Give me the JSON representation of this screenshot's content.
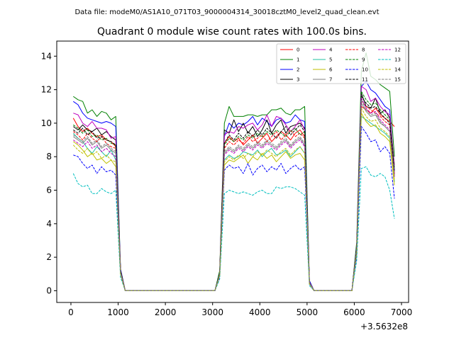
{
  "chart_data": {
    "type": "line",
    "suptitle": "Data file: modeM0/AS1A10_071T03_9000004314_30018cztM0_level2_quad_clean.evt",
    "title": "Quadrant 0 module wise count rates with 100.0s bins.",
    "xlabel": "",
    "ylabel": "",
    "offset_label": "+3.5632e8",
    "xlim": [
      -300,
      7150
    ],
    "ylim": [
      -0.7,
      14.9
    ],
    "xticks": [
      0,
      1000,
      2000,
      3000,
      4000,
      5000,
      6000,
      7000
    ],
    "xtick_labels": [
      "0",
      "1000",
      "2000",
      "3000",
      "4000",
      "5000",
      "6000",
      "7000"
    ],
    "yticks": [
      0,
      2,
      4,
      6,
      8,
      10,
      12,
      14
    ],
    "ytick_labels": [
      "0",
      "2",
      "4",
      "6",
      "8",
      "10",
      "12",
      "14"
    ],
    "legend_position": "top-right",
    "x": [
      50,
      150,
      250,
      350,
      450,
      550,
      650,
      750,
      850,
      950,
      1050,
      1150,
      1250,
      1350,
      1450,
      1550,
      1650,
      1750,
      1850,
      1950,
      2050,
      2150,
      2250,
      2350,
      2450,
      2550,
      2650,
      2750,
      2850,
      2950,
      3050,
      3150,
      3250,
      3350,
      3450,
      3550,
      3650,
      3750,
      3850,
      3950,
      4050,
      4150,
      4250,
      4350,
      4450,
      4550,
      4650,
      4750,
      4850,
      4950,
      5050,
      5150,
      5250,
      5350,
      5450,
      5550,
      5650,
      5750,
      5850,
      5950,
      6050,
      6150,
      6250,
      6350,
      6450,
      6550,
      6650,
      6750,
      6850
    ],
    "series": [
      {
        "name": "0",
        "color": "#ff0000",
        "dash": "solid",
        "values": [
          10.3,
          9.8,
          9.5,
          9.7,
          9.4,
          9.2,
          9.3,
          9.0,
          8.9,
          8.6,
          1.2,
          0,
          0,
          0,
          0,
          0,
          0,
          0,
          0,
          0,
          0,
          0,
          0,
          0,
          0,
          0,
          0,
          0,
          0,
          0,
          0,
          1.0,
          8.8,
          9.2,
          8.9,
          9.1,
          8.7,
          9.0,
          9.3,
          8.8,
          9.1,
          9.4,
          8.9,
          9.2,
          9.5,
          9.3,
          9.0,
          9.4,
          9.6,
          9.2,
          0.5,
          0,
          0,
          0,
          0,
          0,
          0,
          0,
          0,
          0,
          2.5,
          11.0,
          10.8,
          10.6,
          10.9,
          10.5,
          10.3,
          10.1,
          9.8
        ]
      },
      {
        "name": "1",
        "color": "#008000",
        "dash": "solid",
        "values": [
          11.6,
          11.4,
          11.3,
          10.6,
          10.8,
          10.4,
          10.7,
          10.6,
          10.2,
          10.4,
          1.3,
          0,
          0,
          0,
          0,
          0,
          0,
          0,
          0,
          0,
          0,
          0,
          0,
          0,
          0,
          0,
          0,
          0,
          0,
          0,
          0,
          1.2,
          10.0,
          11.0,
          10.4,
          10.4,
          10.4,
          10.5,
          10.5,
          10.4,
          10.5,
          10.5,
          10.8,
          10.8,
          10.9,
          10.6,
          10.5,
          10.8,
          10.8,
          11.0,
          0.6,
          0,
          0,
          0,
          0,
          0,
          0,
          0,
          0,
          0,
          2.9,
          13.1,
          14.2,
          12.8,
          12.6,
          12.3,
          12.1,
          11.9,
          8.0
        ]
      },
      {
        "name": "2",
        "color": "#0000ff",
        "dash": "solid",
        "values": [
          11.3,
          11.1,
          10.6,
          10.3,
          10.2,
          10.1,
          10.0,
          10.1,
          10.0,
          9.8,
          1.3,
          0,
          0,
          0,
          0,
          0,
          0,
          0,
          0,
          0,
          0,
          0,
          0,
          0,
          0,
          0,
          0,
          0,
          0,
          0,
          0,
          1.1,
          9.2,
          10.0,
          9.7,
          10.0,
          9.9,
          10.1,
          10.4,
          9.9,
          10.3,
          10.1,
          9.8,
          10.2,
          10.3,
          10.0,
          10.1,
          10.5,
          10.2,
          10.1,
          0.6,
          0,
          0,
          0,
          0,
          0,
          0,
          0,
          0,
          0,
          2.7,
          12.2,
          12.5,
          12.0,
          11.8,
          11.4,
          11.0,
          10.8,
          7.2
        ]
      },
      {
        "name": "3",
        "color": "#000000",
        "dash": "solid",
        "values": [
          9.8,
          9.6,
          9.9,
          9.6,
          9.5,
          9.7,
          9.3,
          9.5,
          9.2,
          9.0,
          1.2,
          0,
          0,
          0,
          0,
          0,
          0,
          0,
          0,
          0,
          0,
          0,
          0,
          0,
          0,
          0,
          0,
          0,
          0,
          0,
          0,
          1.1,
          9.6,
          9.4,
          10.2,
          9.5,
          10.0,
          9.4,
          9.8,
          9.2,
          9.6,
          10.2,
          9.4,
          9.9,
          10.2,
          9.4,
          9.8,
          9.9,
          10.0,
          9.7,
          0.5,
          0,
          0,
          0,
          0,
          0,
          0,
          0,
          0,
          0,
          2.6,
          11.8,
          11.0,
          10.9,
          11.5,
          10.6,
          10.8,
          10.3,
          6.9
        ]
      },
      {
        "name": "4",
        "color": "#bf00bf",
        "dash": "solid",
        "values": [
          10.6,
          10.5,
          10.0,
          9.8,
          10.1,
          9.7,
          9.7,
          9.6,
          9.1,
          9.2,
          1.2,
          0,
          0,
          0,
          0,
          0,
          0,
          0,
          0,
          0,
          0,
          0,
          0,
          0,
          0,
          0,
          0,
          0,
          0,
          0,
          0,
          1.0,
          9.3,
          9.5,
          9.4,
          9.8,
          9.7,
          9.9,
          10.0,
          9.6,
          9.9,
          10.5,
          9.8,
          10.4,
          10.3,
          9.9,
          9.5,
          9.8,
          10.2,
          9.6,
          0.5,
          0,
          0,
          0,
          0,
          0,
          0,
          0,
          0,
          0,
          2.6,
          12.2,
          12.0,
          11.3,
          11.5,
          11.0,
          10.7,
          10.5,
          7.5
        ]
      },
      {
        "name": "5",
        "color": "#20c0a0",
        "dash": "solid",
        "values": [
          9.4,
          9.1,
          8.9,
          8.5,
          8.2,
          8.6,
          8.3,
          8.0,
          8.4,
          7.8,
          1.1,
          0,
          0,
          0,
          0,
          0,
          0,
          0,
          0,
          0,
          0,
          0,
          0,
          0,
          0,
          0,
          0,
          0,
          0,
          0,
          0,
          0.9,
          7.8,
          8.1,
          7.9,
          8.0,
          8.3,
          8.2,
          8.1,
          8.4,
          8.0,
          8.3,
          8.5,
          8.1,
          8.2,
          8.4,
          8.0,
          8.3,
          8.6,
          8.2,
          0.5,
          0,
          0,
          0,
          0,
          0,
          0,
          0,
          0,
          0,
          2.3,
          10.4,
          10.2,
          10.0,
          9.8,
          9.6,
          9.4,
          9.1,
          6.5
        ]
      },
      {
        "name": "6",
        "color": "#bfbf00",
        "dash": "solid",
        "values": [
          8.9,
          8.7,
          8.4,
          8.0,
          8.2,
          7.8,
          7.9,
          7.6,
          7.8,
          7.4,
          1.0,
          0,
          0,
          0,
          0,
          0,
          0,
          0,
          0,
          0,
          0,
          0,
          0,
          0,
          0,
          0,
          0,
          0,
          0,
          0,
          0,
          0.9,
          7.5,
          7.8,
          7.7,
          7.9,
          8.1,
          7.6,
          8.0,
          7.8,
          8.2,
          7.9,
          8.1,
          7.7,
          8.0,
          8.3,
          7.9,
          8.1,
          8.2,
          7.8,
          0.4,
          0,
          0,
          0,
          0,
          0,
          0,
          0,
          0,
          0,
          2.2,
          10.6,
          10.1,
          9.8,
          9.9,
          9.4,
          9.2,
          8.9,
          6.3
        ]
      },
      {
        "name": "7",
        "color": "#808080",
        "dash": "solid",
        "values": [
          9.2,
          9.0,
          8.8,
          9.1,
          8.7,
          8.9,
          8.5,
          8.7,
          8.4,
          8.2,
          1.1,
          0,
          0,
          0,
          0,
          0,
          0,
          0,
          0,
          0,
          0,
          0,
          0,
          0,
          0,
          0,
          0,
          0,
          0,
          0,
          0,
          1.0,
          8.2,
          8.5,
          8.3,
          8.6,
          8.4,
          8.7,
          8.5,
          8.8,
          8.6,
          8.9,
          8.7,
          8.5,
          8.8,
          9.0,
          8.6,
          8.9,
          9.1,
          8.7,
          0.5,
          0,
          0,
          0,
          0,
          0,
          0,
          0,
          0,
          0,
          2.4,
          11.2,
          10.7,
          10.4,
          10.5,
          10.0,
          9.8,
          9.5,
          6.8
        ]
      },
      {
        "name": "8",
        "color": "#ff0000",
        "dash": "dashed",
        "values": [
          9.5,
          9.3,
          9.0,
          9.4,
          9.1,
          8.9,
          9.2,
          8.8,
          8.6,
          8.5,
          1.2,
          0,
          0,
          0,
          0,
          0,
          0,
          0,
          0,
          0,
          0,
          0,
          0,
          0,
          0,
          0,
          0,
          0,
          0,
          0,
          0,
          1.0,
          8.5,
          8.9,
          8.7,
          9.0,
          8.8,
          9.2,
          8.9,
          9.1,
          9.3,
          8.9,
          9.2,
          9.5,
          9.0,
          9.3,
          9.6,
          9.2,
          9.4,
          9.1,
          0.5,
          0,
          0,
          0,
          0,
          0,
          0,
          0,
          0,
          0,
          2.5,
          11.3,
          11.0,
          10.8,
          10.6,
          10.4,
          10.1,
          9.9,
          7.0
        ]
      },
      {
        "name": "9",
        "color": "#008000",
        "dash": "dashed",
        "values": [
          9.9,
          9.7,
          9.4,
          9.6,
          9.2,
          9.3,
          9.0,
          9.1,
          8.8,
          8.7,
          1.2,
          0,
          0,
          0,
          0,
          0,
          0,
          0,
          0,
          0,
          0,
          0,
          0,
          0,
          0,
          0,
          0,
          0,
          0,
          0,
          0,
          1.1,
          8.7,
          9.1,
          8.9,
          9.2,
          9.0,
          9.3,
          9.1,
          9.4,
          9.2,
          9.5,
          9.3,
          9.6,
          9.4,
          9.2,
          9.5,
          9.7,
          9.3,
          9.5,
          0.5,
          0,
          0,
          0,
          0,
          0,
          0,
          0,
          0,
          0,
          2.6,
          11.9,
          11.4,
          11.1,
          11.2,
          10.8,
          10.5,
          10.2,
          7.3
        ]
      },
      {
        "name": "10",
        "color": "#0000ff",
        "dash": "dashed",
        "values": [
          8.1,
          8.0,
          7.6,
          7.3,
          7.5,
          7.0,
          7.4,
          7.1,
          7.2,
          6.9,
          1.0,
          0,
          0,
          0,
          0,
          0,
          0,
          0,
          0,
          0,
          0,
          0,
          0,
          0,
          0,
          0,
          0,
          0,
          0,
          0,
          0,
          0.8,
          7.2,
          7.5,
          7.3,
          7.4,
          7.0,
          7.6,
          6.9,
          7.3,
          7.5,
          7.1,
          7.4,
          7.2,
          7.6,
          7.0,
          7.3,
          7.5,
          7.2,
          7.4,
          0.4,
          0,
          0,
          0,
          0,
          0,
          0,
          0,
          0,
          0,
          2.0,
          9.8,
          9.4,
          8.9,
          9.0,
          8.3,
          8.6,
          8.2,
          5.5
        ]
      },
      {
        "name": "11",
        "color": "#000000",
        "dash": "dashed",
        "values": [
          9.6,
          9.4,
          9.7,
          9.3,
          9.5,
          9.1,
          9.2,
          9.0,
          8.9,
          8.7,
          1.2,
          0,
          0,
          0,
          0,
          0,
          0,
          0,
          0,
          0,
          0,
          0,
          0,
          0,
          0,
          0,
          0,
          0,
          0,
          0,
          0,
          1.0,
          8.8,
          9.3,
          9.0,
          9.4,
          9.1,
          9.5,
          9.2,
          9.6,
          9.3,
          9.7,
          9.4,
          9.1,
          9.5,
          9.8,
          9.3,
          9.6,
          9.9,
          9.5,
          0.5,
          0,
          0,
          0,
          0,
          0,
          0,
          0,
          0,
          0,
          2.6,
          11.6,
          11.2,
          10.9,
          11.0,
          10.6,
          10.3,
          10.0,
          7.1
        ]
      },
      {
        "name": "12",
        "color": "#bf00bf",
        "dash": "dashed",
        "values": [
          9.0,
          8.8,
          8.6,
          8.9,
          8.5,
          8.7,
          8.3,
          8.5,
          8.2,
          8.0,
          1.1,
          0,
          0,
          0,
          0,
          0,
          0,
          0,
          0,
          0,
          0,
          0,
          0,
          0,
          0,
          0,
          0,
          0,
          0,
          0,
          0,
          0.9,
          8.1,
          8.4,
          8.2,
          8.5,
          8.3,
          8.6,
          8.4,
          8.7,
          8.5,
          8.8,
          8.6,
          8.4,
          8.7,
          8.9,
          8.5,
          8.8,
          9.0,
          8.6,
          0.5,
          0,
          0,
          0,
          0,
          0,
          0,
          0,
          0,
          0,
          2.4,
          11.5,
          10.9,
          10.6,
          10.7,
          10.2,
          9.9,
          9.6,
          6.8
        ]
      },
      {
        "name": "13",
        "color": "#00bfbf",
        "dash": "dashed",
        "values": [
          7.0,
          6.4,
          6.2,
          6.3,
          5.8,
          5.8,
          6.1,
          5.9,
          5.8,
          6.0,
          0.8,
          0,
          0,
          0,
          0,
          0,
          0,
          0,
          0,
          0,
          0,
          0,
          0,
          0,
          0,
          0,
          0,
          0,
          0,
          0,
          0,
          0.7,
          5.8,
          6.0,
          5.9,
          5.8,
          5.9,
          5.8,
          5.7,
          5.9,
          6.0,
          5.8,
          5.8,
          6.2,
          6.1,
          6.2,
          6.2,
          6.1,
          5.9,
          5.7,
          0.3,
          0,
          0,
          0,
          0,
          0,
          0,
          0,
          0,
          0,
          1.8,
          7.3,
          7.4,
          6.9,
          6.8,
          7.0,
          6.8,
          6.0,
          4.3
        ]
      },
      {
        "name": "14",
        "color": "#bfbf00",
        "dash": "dashed",
        "values": [
          8.7,
          8.4,
          8.2,
          8.5,
          8.1,
          8.3,
          7.9,
          8.1,
          7.8,
          7.7,
          1.0,
          0,
          0,
          0,
          0,
          0,
          0,
          0,
          0,
          0,
          0,
          0,
          0,
          0,
          0,
          0,
          0,
          0,
          0,
          0,
          0,
          0.9,
          7.7,
          8.0,
          7.8,
          8.1,
          7.9,
          8.2,
          8.0,
          8.3,
          8.1,
          8.4,
          8.2,
          8.0,
          8.3,
          8.5,
          8.1,
          8.4,
          8.6,
          8.2,
          0.4,
          0,
          0,
          0,
          0,
          0,
          0,
          0,
          0,
          0,
          2.3,
          10.9,
          10.4,
          10.1,
          10.2,
          9.7,
          9.5,
          9.2,
          6.6
        ]
      },
      {
        "name": "15",
        "color": "#808080",
        "dash": "dashed",
        "values": [
          9.3,
          9.1,
          8.9,
          9.2,
          8.8,
          9.0,
          8.6,
          8.8,
          8.5,
          8.3,
          1.1,
          0,
          0,
          0,
          0,
          0,
          0,
          0,
          0,
          0,
          0,
          0,
          0,
          0,
          0,
          0,
          0,
          0,
          0,
          0,
          0,
          1.0,
          8.3,
          8.6,
          8.4,
          8.7,
          8.5,
          8.8,
          8.6,
          8.9,
          8.7,
          9.0,
          8.8,
          8.6,
          8.9,
          9.1,
          8.7,
          9.0,
          9.2,
          8.8,
          0.5,
          0,
          0,
          0,
          0,
          0,
          0,
          0,
          0,
          0,
          2.5,
          11.4,
          10.8,
          10.5,
          10.6,
          10.1,
          9.8,
          9.5,
          6.9
        ]
      }
    ]
  }
}
